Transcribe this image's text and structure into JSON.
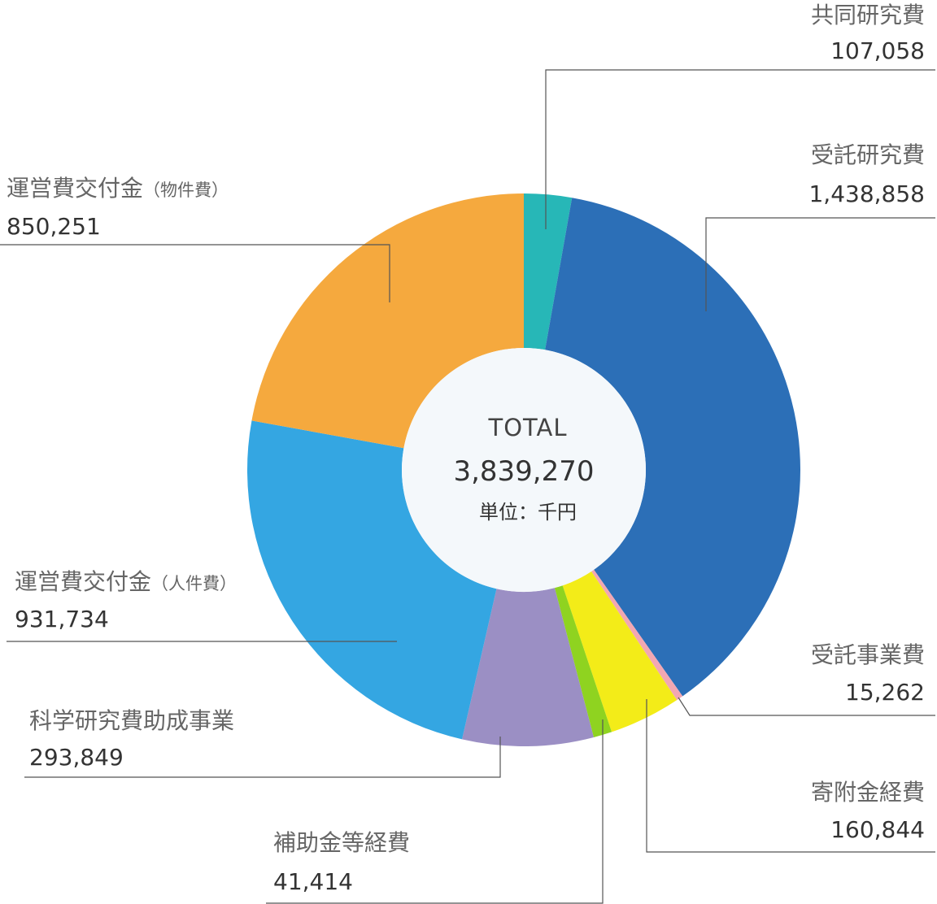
{
  "chart_data": {
    "type": "donut",
    "title": "",
    "center": {
      "title": "TOTAL",
      "total": "3,839,270",
      "unit": "単位：千円"
    },
    "series": [
      {
        "label": "共同研究費",
        "label_suffix": "",
        "display_value": "107,058",
        "value": 107058,
        "color": "#27b7b7"
      },
      {
        "label": "受託研究費",
        "label_suffix": "",
        "display_value": "1,438,858",
        "value": 1438858,
        "color": "#2c6fb7"
      },
      {
        "label": "受託事業費",
        "label_suffix": "",
        "display_value": "15,262",
        "value": 15262,
        "color": "#f2a7b2"
      },
      {
        "label": "寄附金経費",
        "label_suffix": "",
        "display_value": "160,844",
        "value": 160844,
        "color": "#f3ec18"
      },
      {
        "label": "補助金等経費",
        "label_suffix": "",
        "display_value": "41,414",
        "value": 41414,
        "color": "#8fd320"
      },
      {
        "label": "科学研究費助成事業",
        "label_suffix": "",
        "display_value": "293,849",
        "value": 293849,
        "color": "#9b8fc4"
      },
      {
        "label": "運営費交付金",
        "label_suffix": "（人件費）",
        "display_value": "931,734",
        "value": 931734,
        "color": "#34a6e2"
      },
      {
        "label": "運営費交付金",
        "label_suffix": "（物件費）",
        "display_value": "850,251",
        "value": 850251,
        "color": "#f5a93e"
      }
    ]
  }
}
